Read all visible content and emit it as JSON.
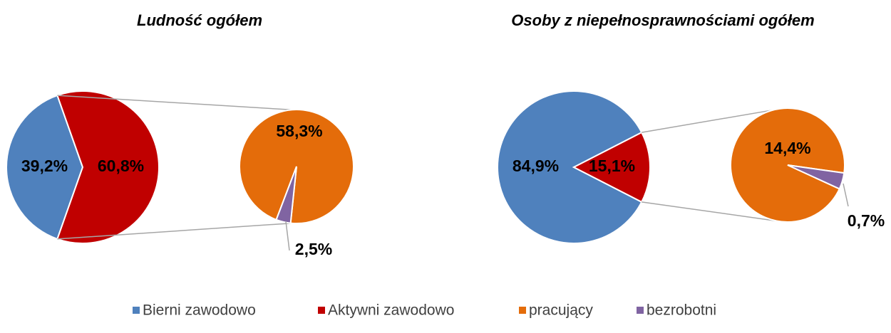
{
  "chart_data": {
    "type": "pie-of-pie",
    "categories": [
      "Bierni zawodowo",
      "Aktywni zawodowo"
    ],
    "secondary_categories": [
      "pracujący",
      "bezrobotni"
    ],
    "colors": [
      "#4f81bd",
      "#c00000"
    ],
    "secondary_colors": [
      "#e46c0a",
      "#8064a2"
    ],
    "legend": "bottom",
    "charts": [
      {
        "title": "Ludność ogółem",
        "values": [
          39.2,
          60.8
        ],
        "value_labels": [
          "39,2%",
          "60,8%"
        ],
        "secondary_values": [
          58.3,
          2.5
        ],
        "secondary_value_labels": [
          "58,3%",
          "2,5%"
        ]
      },
      {
        "title": "Osoby z niepełnosprawnościami ogółem",
        "values": [
          84.9,
          15.1
        ],
        "value_labels": [
          "84,9%",
          "15,1%"
        ],
        "secondary_values": [
          14.4,
          0.7
        ],
        "secondary_value_labels": [
          "14,4%",
          "0,7%"
        ]
      }
    ]
  }
}
